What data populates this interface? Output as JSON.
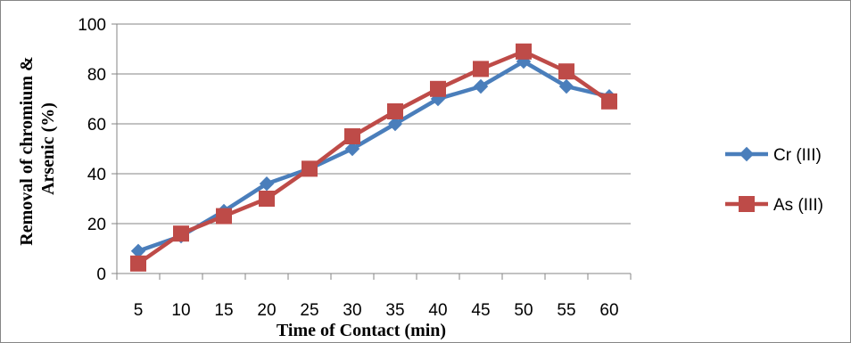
{
  "chart_data": {
    "type": "line",
    "title": "",
    "xlabel": "Time of Contact (min)",
    "ylabel": "Removal of chromium & Arsenic (%)",
    "ylabel_lines": [
      "Removal of chromium &",
      "Arsenic (%)"
    ],
    "categories": [
      "5",
      "10",
      "15",
      "20",
      "25",
      "30",
      "35",
      "40",
      "45",
      "50",
      "55",
      "60"
    ],
    "y_ticks": [
      "0",
      "20",
      "40",
      "60",
      "80",
      "100"
    ],
    "ylim": [
      0,
      100
    ],
    "grid": true,
    "legend_position": "right",
    "series": [
      {
        "name": "Cr (III)",
        "color": "#4A7EBB",
        "marker": "diamond",
        "values": [
          9,
          15,
          25,
          36,
          42,
          50,
          60,
          70,
          75,
          85,
          75,
          71
        ]
      },
      {
        "name": "As (III)",
        "color": "#BE4B48",
        "marker": "square",
        "values": [
          4,
          16,
          23,
          30,
          42,
          55,
          65,
          74,
          82,
          89,
          81,
          69
        ]
      }
    ]
  }
}
